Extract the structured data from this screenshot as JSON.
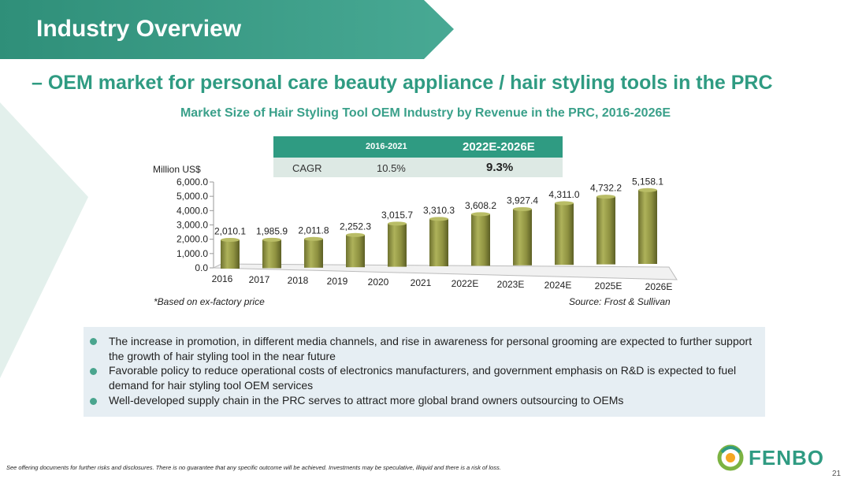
{
  "slide": {
    "title": "Industry Overview",
    "subtitle": "– OEM market for personal care beauty appliance / hair styling tools in the PRC",
    "page_number": "21",
    "disclaimer": "See offering documents for further risks and disclosures. There is no guarantee that any specific outcome will be achieved. Investments may be speculative, illiquid and there is a risk of loss.",
    "logo_text": "FENBO",
    "colors": {
      "accent": "#2f9b82",
      "bar": "#8e9140",
      "light_panel": "#e6eef3",
      "table_row": "#dde9e4"
    }
  },
  "cagr_table": {
    "headers": [
      "",
      "2016-2021",
      "2022E-2026E"
    ],
    "row": {
      "label": "CAGR",
      "v1": "10.5%",
      "v2": "9.3%"
    }
  },
  "notes": {
    "left": "*Based on ex-factory price",
    "right": "Source: Frost & Sullivan"
  },
  "bullets": [
    "The increase in promotion, in different media channels, and rise in awareness for personal grooming are expected to further support the growth of hair styling tool in the near future",
    "Favorable policy to reduce operational costs of electronics manufacturers, and government emphasis on R&D is expected to fuel demand  for hair styling tool OEM services",
    "Well-developed supply chain in the PRC serves to attract more global brand owners outsourcing to OEMs"
  ],
  "chart_data": {
    "type": "bar",
    "title": "Market Size of Hair Styling Tool OEM Industry by Revenue in the PRC, 2016-2026E",
    "ylabel": "Million US$",
    "categories": [
      "2016",
      "2017",
      "2018",
      "2019",
      "2020",
      "2021",
      "2022E",
      "2023E",
      "2024E",
      "2025E",
      "2026E"
    ],
    "values": [
      2010.1,
      1985.9,
      2011.8,
      2252.3,
      3015.7,
      3310.3,
      3608.2,
      3927.4,
      4311.0,
      4732.2,
      5158.1
    ],
    "value_labels": [
      "2,010.1",
      "1,985.9",
      "2,011.8",
      "2,252.3",
      "3,015.7",
      "3,310.3",
      "3,608.2",
      "3,927.4",
      "4,311.0",
      "4,732.2",
      "5,158.1"
    ],
    "ylim": [
      0,
      6000
    ],
    "yticks": [
      "0.0",
      "1,000.0",
      "2,000.0",
      "3,000.0",
      "4,000.0",
      "5,000.0",
      "6,000.0"
    ],
    "grid": false,
    "style": "3d-cylinder"
  }
}
